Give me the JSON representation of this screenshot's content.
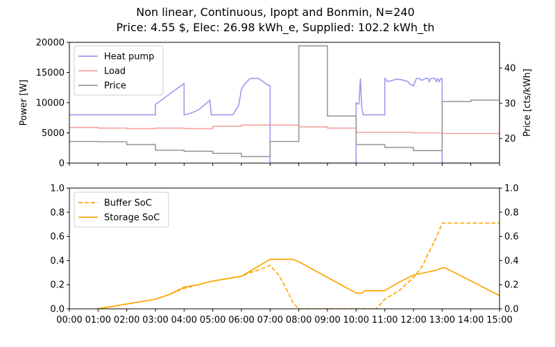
{
  "title_line1": "Non linear, Continuous, Ipopt and Bonmin, N=240",
  "title_line2": "Price: 4.55 $, Elec: 26.98 kWh_e, Supplied: 102.2 kWh_th",
  "chart_data": [
    {
      "type": "line",
      "ylabel": "Power [W]",
      "ylabel_right": "Price [cts/kWh]",
      "xlim": [
        0,
        15
      ],
      "ylim": [
        0,
        20000
      ],
      "ylim_right": [
        13.05,
        47.3
      ],
      "yticks": [
        0,
        5000,
        10000,
        15000,
        20000
      ],
      "yticks_right": [
        20,
        30,
        40
      ],
      "legend_position": "upper-left",
      "series": [
        {
          "name": "Heat pump",
          "axis": "left",
          "color": "#9999ee",
          "x": [
            0,
            3.0,
            3.0,
            4.0,
            4.0,
            4.2,
            4.5,
            4.9,
            4.95,
            5.0,
            5.7,
            5.9,
            6.0,
            6.1,
            6.3,
            6.6,
            6.9,
            7.0,
            7.0,
            10.0,
            10.0,
            10.05,
            10.1,
            10.15,
            10.2,
            10.25,
            10.3,
            10.4,
            10.6,
            11.0,
            11.0,
            11.1,
            11.2,
            11.4,
            11.6,
            11.8,
            11.9,
            12.0,
            12.05,
            12.1,
            12.2,
            12.3,
            12.4,
            12.5,
            12.55,
            12.6,
            12.65,
            12.75,
            12.8,
            12.85,
            12.9,
            12.95,
            13.0,
            13.0,
            15.0
          ],
          "values": [
            8000,
            8000,
            9700,
            13200,
            8000,
            8200,
            8800,
            10400,
            8000,
            8000,
            8000,
            9500,
            12200,
            13000,
            14000,
            14000,
            13000,
            12800,
            0,
            0,
            10000,
            9800,
            9800,
            14000,
            9000,
            8000,
            8000,
            8000,
            8000,
            8000,
            14000,
            13500,
            13600,
            13900,
            13800,
            13500,
            13000,
            12800,
            13400,
            14000,
            14000,
            13700,
            14000,
            14000,
            13500,
            14000,
            14000,
            14000,
            13500,
            14000,
            13500,
            14000,
            14000,
            0,
            0
          ]
        },
        {
          "name": "Load",
          "axis": "left",
          "color": "#f4a0a0",
          "x": [
            0,
            1,
            1,
            2,
            2,
            3,
            3,
            4,
            4,
            5,
            5,
            6,
            6,
            7,
            7,
            8,
            8,
            9,
            9,
            10,
            10,
            11,
            11,
            12,
            12,
            13,
            13,
            14,
            14,
            15
          ],
          "values": [
            5900,
            5900,
            5800,
            5800,
            5700,
            5700,
            5800,
            5800,
            5700,
            5700,
            6100,
            6100,
            6300,
            6300,
            6300,
            6300,
            6000,
            6000,
            5800,
            5800,
            5100,
            5100,
            5100,
            5100,
            5000,
            5000,
            4900,
            4900,
            4900,
            4900
          ]
        },
        {
          "name": "Price",
          "axis": "right",
          "color": "#999999",
          "x": [
            0,
            1,
            1,
            2,
            2,
            3,
            3,
            4,
            4,
            5,
            5,
            6,
            6,
            7,
            7,
            8,
            8,
            9,
            9,
            10,
            10,
            11,
            11,
            12,
            12,
            13,
            13,
            14,
            14,
            15
          ],
          "values": [
            19.2,
            19.2,
            19.1,
            19.1,
            18.3,
            18.3,
            16.7,
            16.7,
            16.4,
            16.4,
            15.8,
            15.8,
            14.9,
            14.9,
            19.2,
            19.2,
            46.3,
            46.3,
            26.4,
            26.4,
            18.3,
            18.3,
            17.5,
            17.5,
            16.6,
            16.6,
            30.5,
            30.5,
            30.9,
            30.9
          ]
        }
      ]
    },
    {
      "type": "line",
      "xlim": [
        0,
        15
      ],
      "ylim": [
        0,
        1
      ],
      "ylim_right": [
        0,
        1
      ],
      "yticks": [
        0.0,
        0.2,
        0.4,
        0.6,
        0.8,
        1.0
      ],
      "yticks_right": [
        0.0,
        0.2,
        0.4,
        0.6,
        0.8,
        1.0
      ],
      "xticks": [
        "00:00",
        "01:00",
        "02:00",
        "03:00",
        "04:00",
        "05:00",
        "06:00",
        "07:00",
        "08:00",
        "09:00",
        "10:00",
        "11:00",
        "12:00",
        "13:00",
        "14:00",
        "15:00"
      ],
      "legend_position": "upper-left",
      "series": [
        {
          "name": "Buffer SoC",
          "color": "#ffa500",
          "dash": "dashed",
          "x": [
            1.0,
            2.0,
            3.0,
            3.5,
            4.0,
            4.5,
            5.0,
            5.5,
            6.0,
            6.3,
            6.7,
            7.0,
            7.3,
            7.6,
            7.8,
            8.0,
            10.7,
            11.0,
            11.5,
            12.0,
            12.3,
            12.5,
            12.8,
            13.0,
            15.0
          ],
          "values": [
            0.0,
            0.04,
            0.08,
            0.12,
            0.17,
            0.2,
            0.23,
            0.25,
            0.27,
            0.3,
            0.33,
            0.36,
            0.28,
            0.15,
            0.05,
            0.0,
            0.0,
            0.08,
            0.15,
            0.26,
            0.35,
            0.45,
            0.59,
            0.71,
            0.71
          ]
        },
        {
          "name": "Storage SoC",
          "color": "#ffa500",
          "dash": "solid",
          "x": [
            1.0,
            2.0,
            3.0,
            3.5,
            4.0,
            4.5,
            5.0,
            5.5,
            6.0,
            6.5,
            7.0,
            7.8,
            8.0,
            10.0,
            10.2,
            10.3,
            11.0,
            11.2,
            11.5,
            12.0,
            12.2,
            12.4,
            12.8,
            13.0,
            13.1,
            15.0
          ],
          "values": [
            0.0,
            0.04,
            0.08,
            0.12,
            0.18,
            0.2,
            0.23,
            0.25,
            0.27,
            0.34,
            0.41,
            0.41,
            0.39,
            0.13,
            0.13,
            0.15,
            0.15,
            0.18,
            0.22,
            0.28,
            0.29,
            0.3,
            0.32,
            0.34,
            0.34,
            0.11
          ]
        }
      ]
    }
  ]
}
